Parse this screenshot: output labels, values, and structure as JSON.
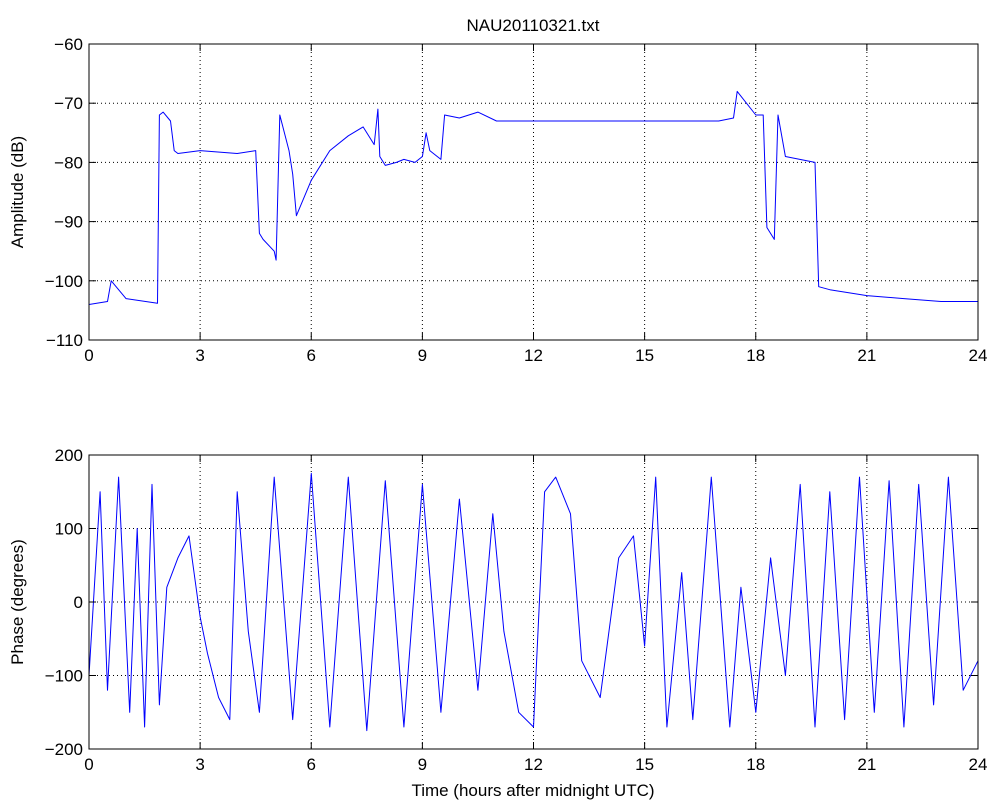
{
  "chart_data": [
    {
      "type": "line",
      "title": "NAU20110321.txt",
      "xlabel": "",
      "ylabel": "Amplitude (dB)",
      "xlim": [
        0,
        24
      ],
      "ylim": [
        -110,
        -60
      ],
      "xticks": [
        0,
        3,
        6,
        9,
        12,
        15,
        18,
        21,
        24
      ],
      "yticks": [
        -110,
        -100,
        -90,
        -80,
        -70,
        -60
      ],
      "grid": true,
      "color": "#0000ff",
      "series": [
        {
          "x": [
            0,
            0.5,
            0.6,
            1.0,
            1.85,
            1.9,
            2.0,
            2.2,
            2.3,
            2.4,
            3.0,
            4.0,
            4.5,
            4.6,
            4.7,
            5.0,
            5.05,
            5.15,
            5.4,
            5.5,
            5.6,
            6.0,
            6.5,
            7.0,
            7.4,
            7.7,
            7.8,
            7.85,
            8.0,
            8.3,
            8.5,
            8.8,
            9.0,
            9.1,
            9.2,
            9.5,
            9.6,
            10.0,
            10.5,
            11.0,
            12.0,
            13.0,
            15.0,
            17.0,
            17.4,
            17.5,
            18.0,
            18.2,
            18.3,
            18.5,
            18.6,
            18.8,
            19.6,
            19.7,
            20.0,
            21.0,
            22.0,
            23.0,
            24.0
          ],
          "y": [
            -104,
            -103.5,
            -100,
            -103,
            -103.8,
            -72,
            -71.5,
            -73,
            -78,
            -78.5,
            -78,
            -78.5,
            -78,
            -92,
            -93,
            -95,
            -96.5,
            -72,
            -78,
            -82,
            -89,
            -83,
            -78,
            -75.5,
            -74,
            -77,
            -71,
            -79,
            -80.5,
            -80,
            -79.5,
            -80,
            -79,
            -75,
            -78,
            -79.5,
            -72,
            -72.5,
            -71.5,
            -73,
            -73,
            -73,
            -73,
            -73,
            -72.5,
            -68,
            -72,
            -72,
            -91,
            -93,
            -72,
            -79,
            -80,
            -101,
            -101.5,
            -102.5,
            -103,
            -103.5,
            -103.5
          ]
        }
      ]
    },
    {
      "type": "line",
      "title": "",
      "xlabel": "Time (hours after midnight UTC)",
      "ylabel": "Phase (degrees)",
      "xlim": [
        0,
        24
      ],
      "ylim": [
        -200,
        200
      ],
      "xticks": [
        0,
        3,
        6,
        9,
        12,
        15,
        18,
        21,
        24
      ],
      "yticks": [
        -200,
        -100,
        0,
        100,
        200
      ],
      "grid": true,
      "color": "#0000ff",
      "series": [
        {
          "x": [
            0,
            0.3,
            0.5,
            0.8,
            1.1,
            1.3,
            1.5,
            1.7,
            1.9,
            2.1,
            2.4,
            2.7,
            3.0,
            3.2,
            3.5,
            3.8,
            4.0,
            4.3,
            4.6,
            5.0,
            5.5,
            6.0,
            6.5,
            7.0,
            7.5,
            8.0,
            8.5,
            9.0,
            9.5,
            10.0,
            10.5,
            10.9,
            11.2,
            11.6,
            12.0,
            12.3,
            12.6,
            13.0,
            13.3,
            13.8,
            14.3,
            14.7,
            15.0,
            15.3,
            15.6,
            16.0,
            16.3,
            16.8,
            17.3,
            17.6,
            18.0,
            18.4,
            18.8,
            19.2,
            19.6,
            20.0,
            20.4,
            20.8,
            21.2,
            21.6,
            22.0,
            22.4,
            22.8,
            23.2,
            23.6,
            24.0
          ],
          "y": [
            -100,
            150,
            -120,
            170,
            -150,
            100,
            -170,
            160,
            -140,
            20,
            60,
            90,
            -20,
            -70,
            -130,
            -160,
            150,
            -40,
            -150,
            170,
            -160,
            175,
            -170,
            170,
            -175,
            165,
            -170,
            160,
            -150,
            140,
            -120,
            120,
            -40,
            -150,
            -170,
            150,
            170,
            120,
            -80,
            -130,
            60,
            90,
            -60,
            170,
            -170,
            40,
            -160,
            170,
            -170,
            20,
            -150,
            60,
            -100,
            160,
            -170,
            150,
            -160,
            170,
            -150,
            165,
            -170,
            160,
            -140,
            170,
            -120,
            -80
          ]
        }
      ]
    }
  ]
}
